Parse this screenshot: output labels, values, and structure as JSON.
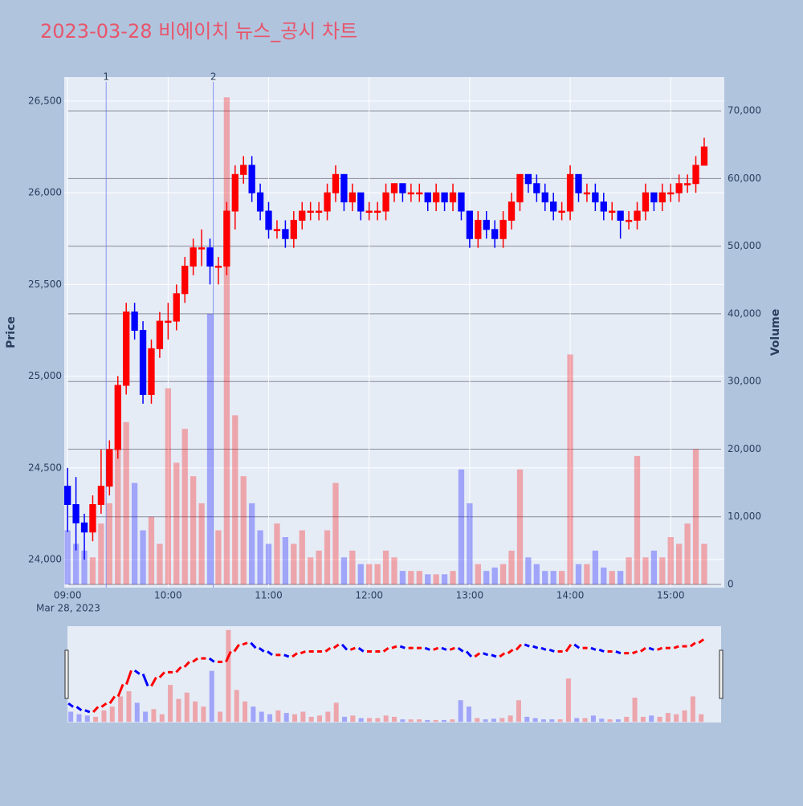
{
  "chart_data": {
    "type": "candlestick",
    "title": "2023-03-28 비에이치 뉴스_공시 차트",
    "y_title": "Price",
    "y2_title": "Volume",
    "x_date_label": "Mar 28, 2023",
    "x": [
      "09:00",
      "09:05",
      "09:10",
      "09:15",
      "09:20",
      "09:25",
      "09:30",
      "09:35",
      "09:40",
      "09:45",
      "09:50",
      "09:55",
      "10:00",
      "10:05",
      "10:10",
      "10:15",
      "10:20",
      "10:25",
      "10:30",
      "10:35",
      "10:40",
      "10:45",
      "10:50",
      "10:55",
      "11:00",
      "11:05",
      "11:10",
      "11:15",
      "11:20",
      "11:25",
      "11:30",
      "11:35",
      "11:40",
      "11:45",
      "11:50",
      "11:55",
      "12:00",
      "12:05",
      "12:10",
      "12:15",
      "12:20",
      "12:25",
      "12:30",
      "12:35",
      "12:40",
      "12:45",
      "12:50",
      "12:55",
      "13:00",
      "13:05",
      "13:10",
      "13:15",
      "13:20",
      "13:25",
      "13:30",
      "13:35",
      "13:40",
      "13:45",
      "13:50",
      "13:55",
      "14:00",
      "14:05",
      "14:10",
      "14:15",
      "14:20",
      "14:25",
      "14:30",
      "14:35",
      "14:40",
      "14:45",
      "14:50",
      "14:55",
      "15:00",
      "15:05",
      "15:10",
      "15:15",
      "15:20"
    ],
    "open": [
      24400,
      24300,
      24200,
      24150,
      24300,
      24400,
      24600,
      24950,
      25350,
      25250,
      24900,
      25150,
      25300,
      25300,
      25450,
      25600,
      25700,
      25700,
      25600,
      25600,
      25900,
      26100,
      26150,
      26000,
      25900,
      25800,
      25800,
      25750,
      25850,
      25900,
      25900,
      25900,
      26000,
      26100,
      25950,
      26000,
      25900,
      25900,
      25900,
      26000,
      26050,
      26000,
      26000,
      26000,
      25950,
      26000,
      25950,
      26000,
      25900,
      25750,
      25850,
      25800,
      25750,
      25850,
      25950,
      26100,
      26050,
      26000,
      25950,
      25900,
      25900,
      26100,
      26000,
      26000,
      25950,
      25900,
      25900,
      25850,
      25850,
      25900,
      26000,
      25950,
      26000,
      26000,
      26050,
      26050,
      26150
    ],
    "high": [
      24500,
      24450,
      24250,
      24350,
      24600,
      24650,
      25000,
      25400,
      25400,
      25300,
      25200,
      25350,
      25400,
      25500,
      25650,
      25750,
      25800,
      25750,
      25650,
      25950,
      26150,
      26200,
      26200,
      26050,
      25950,
      25850,
      25850,
      25900,
      25950,
      25950,
      25950,
      26050,
      26150,
      26100,
      26050,
      26000,
      25950,
      25950,
      26050,
      26050,
      26050,
      26050,
      26050,
      26000,
      26050,
      26000,
      26050,
      26000,
      25900,
      25900,
      25900,
      25850,
      25900,
      26000,
      26100,
      26100,
      26100,
      26050,
      26000,
      25950,
      26150,
      26100,
      26050,
      26050,
      26000,
      25950,
      25900,
      25900,
      25950,
      26050,
      26000,
      26050,
      26050,
      26100,
      26100,
      26200,
      26300
    ],
    "low": [
      24150,
      24050,
      24000,
      24100,
      24250,
      24350,
      24550,
      24900,
      25200,
      24850,
      24850,
      25100,
      25200,
      25250,
      25400,
      25550,
      25600,
      25500,
      25500,
      25550,
      25800,
      26050,
      25950,
      25850,
      25750,
      25750,
      25700,
      25700,
      25800,
      25850,
      25850,
      25850,
      25950,
      25900,
      25900,
      25850,
      25850,
      25850,
      25850,
      25950,
      25950,
      25950,
      25950,
      25900,
      25900,
      25900,
      25900,
      25850,
      25700,
      25700,
      25750,
      25700,
      25700,
      25800,
      25900,
      26000,
      25950,
      25900,
      25850,
      25850,
      25850,
      25950,
      25950,
      25900,
      25850,
      25850,
      25750,
      25800,
      25800,
      25850,
      25900,
      25900,
      25950,
      25950,
      26000,
      26000,
      26150
    ],
    "close": [
      24300,
      24200,
      24150,
      24300,
      24400,
      24600,
      24950,
      25350,
      25250,
      24900,
      25150,
      25300,
      25300,
      25450,
      25600,
      25700,
      25700,
      25600,
      25600,
      25900,
      26100,
      26150,
      26000,
      25900,
      25800,
      25800,
      25750,
      25850,
      25900,
      25900,
      25900,
      26000,
      26100,
      25950,
      26000,
      25900,
      25900,
      25900,
      26000,
      26050,
      26000,
      26000,
      26000,
      25950,
      26000,
      25950,
      26000,
      25900,
      25750,
      25850,
      25800,
      25750,
      25850,
      25950,
      26100,
      26050,
      26000,
      25950,
      25900,
      25900,
      26100,
      26000,
      26000,
      25950,
      25900,
      25900,
      25850,
      25850,
      25900,
      26000,
      25950,
      26000,
      26000,
      26050,
      26050,
      26150,
      26250
    ],
    "volume": [
      8000,
      6000,
      5000,
      4000,
      9000,
      12000,
      20000,
      24000,
      15000,
      8000,
      10000,
      6000,
      29000,
      18000,
      23000,
      16000,
      12000,
      40000,
      8000,
      72000,
      25000,
      16000,
      12000,
      8000,
      6000,
      9000,
      7000,
      6000,
      8000,
      4000,
      5000,
      8000,
      15000,
      4000,
      5000,
      3000,
      3000,
      3000,
      5000,
      4000,
      2000,
      2000,
      2000,
      1500,
      1500,
      1500,
      2000,
      17000,
      12000,
      3000,
      2000,
      2500,
      3000,
      5000,
      17000,
      4000,
      3000,
      2000,
      2000,
      2000,
      34000,
      3000,
      3000,
      5000,
      2500,
      2000,
      2000,
      4000,
      19000,
      4000,
      5000,
      4000,
      7000,
      6000,
      9000,
      20000,
      6000
    ],
    "increasing_color": "#ff0000",
    "decreasing_color": "#0000ff",
    "xlim": [
      "08:58",
      "15:32"
    ],
    "xticks": [
      "09:00",
      "10:00",
      "11:00",
      "12:00",
      "13:00",
      "14:00",
      "15:00"
    ],
    "ylim": [
      23847,
      26631
    ],
    "yticks": [
      {
        "value": 24000,
        "label": "24,000"
      },
      {
        "value": 24500,
        "label": "24,500"
      },
      {
        "value": 25000,
        "label": "25,000"
      },
      {
        "value": 25500,
        "label": "25,500"
      },
      {
        "value": 26000,
        "label": "26,000"
      },
      {
        "value": 26500,
        "label": "26,500"
      }
    ],
    "y2lim": [
      -474,
      75000
    ],
    "y2ticks": [
      0,
      {
        "value": 10000,
        "label": "10,000"
      },
      {
        "value": 20000,
        "label": "20,000"
      },
      {
        "value": 30000,
        "label": "30,000"
      },
      {
        "value": 40000,
        "label": "40,000"
      },
      {
        "value": 50000,
        "label": "50,000"
      },
      {
        "value": 60000,
        "label": "60,000"
      },
      {
        "value": 70000,
        "label": "70,000"
      }
    ],
    "annotations": [
      {
        "x": "09:23",
        "text": "1"
      },
      {
        "x": "10:27",
        "text": "2"
      }
    ],
    "grid": true,
    "rangeslider": true
  }
}
